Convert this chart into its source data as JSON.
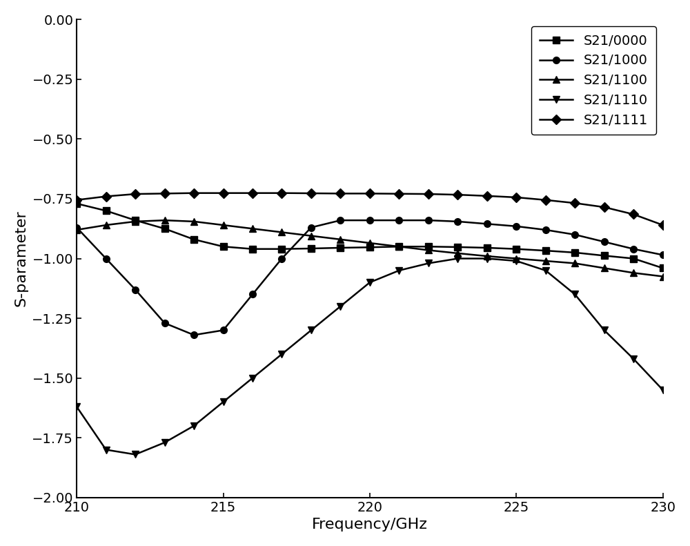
{
  "title": "",
  "xlabel": "Frequency/GHz",
  "ylabel": "S-parameter",
  "xlim": [
    210,
    230
  ],
  "ylim": [
    -2.0,
    0.0
  ],
  "xticks": [
    210,
    215,
    220,
    225,
    230
  ],
  "yticks": [
    0.0,
    -0.25,
    -0.5,
    -0.75,
    -1.0,
    -1.25,
    -1.5,
    -1.75,
    -2.0
  ],
  "background_color": "#ffffff",
  "series": [
    {
      "label": "S21/0000",
      "marker": "s",
      "x": [
        210,
        211,
        212,
        213,
        214,
        215,
        216,
        217,
        218,
        219,
        220,
        221,
        222,
        223,
        224,
        225,
        226,
        227,
        228,
        229,
        230
      ],
      "y": [
        -0.77,
        -0.8,
        -0.84,
        -0.875,
        -0.92,
        -0.95,
        -0.96,
        -0.96,
        -0.958,
        -0.955,
        -0.953,
        -0.95,
        -0.95,
        -0.952,
        -0.955,
        -0.96,
        -0.967,
        -0.975,
        -0.988,
        -1.0,
        -1.04
      ]
    },
    {
      "label": "S21/1000",
      "marker": "o",
      "x": [
        210,
        211,
        212,
        213,
        214,
        215,
        216,
        217,
        218,
        219,
        220,
        221,
        222,
        223,
        224,
        225,
        226,
        227,
        228,
        229,
        230
      ],
      "y": [
        -0.87,
        -1.0,
        -1.13,
        -1.27,
        -1.32,
        -1.3,
        -1.15,
        -1.0,
        -0.87,
        -0.84,
        -0.84,
        -0.84,
        -0.84,
        -0.845,
        -0.855,
        -0.865,
        -0.88,
        -0.9,
        -0.93,
        -0.96,
        -0.985
      ]
    },
    {
      "label": "S21/1100",
      "marker": "^",
      "x": [
        210,
        211,
        212,
        213,
        214,
        215,
        216,
        217,
        218,
        219,
        220,
        221,
        222,
        223,
        224,
        225,
        226,
        227,
        228,
        229,
        230
      ],
      "y": [
        -0.88,
        -0.86,
        -0.845,
        -0.84,
        -0.845,
        -0.86,
        -0.875,
        -0.89,
        -0.905,
        -0.92,
        -0.935,
        -0.95,
        -0.965,
        -0.978,
        -0.99,
        -1.0,
        -1.01,
        -1.02,
        -1.04,
        -1.06,
        -1.075
      ]
    },
    {
      "label": "S21/1110",
      "marker": "v",
      "x": [
        210,
        211,
        212,
        213,
        214,
        215,
        216,
        217,
        218,
        219,
        220,
        221,
        222,
        223,
        224,
        225,
        226,
        227,
        228,
        229,
        230
      ],
      "y": [
        -1.62,
        -1.8,
        -1.82,
        -1.77,
        -1.7,
        -1.6,
        -1.5,
        -1.4,
        -1.3,
        -1.2,
        -1.1,
        -1.05,
        -1.02,
        -1.0,
        -1.0,
        -1.01,
        -1.05,
        -1.15,
        -1.3,
        -1.42,
        -1.55
      ]
    },
    {
      "label": "S21/1111",
      "marker": "D",
      "x": [
        210,
        211,
        212,
        213,
        214,
        215,
        216,
        217,
        218,
        219,
        220,
        221,
        222,
        223,
        224,
        225,
        226,
        227,
        228,
        229,
        230
      ],
      "y": [
        -0.755,
        -0.74,
        -0.73,
        -0.728,
        -0.726,
        -0.726,
        -0.726,
        -0.726,
        -0.727,
        -0.728,
        -0.728,
        -0.729,
        -0.73,
        -0.733,
        -0.738,
        -0.744,
        -0.755,
        -0.768,
        -0.785,
        -0.815,
        -0.86
      ]
    }
  ],
  "linewidth": 1.8,
  "markersize": 7,
  "legend_fontsize": 14,
  "axis_label_fontsize": 16,
  "tick_fontsize": 14
}
